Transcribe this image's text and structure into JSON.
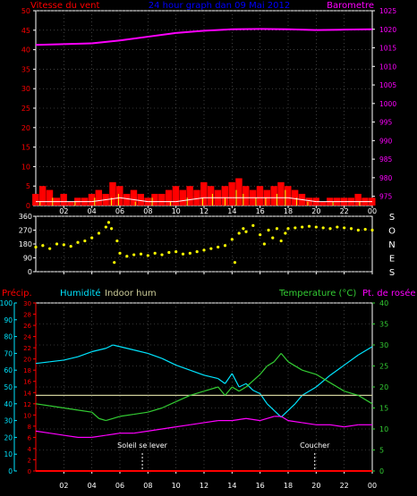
{
  "colors": {
    "background": "#000000",
    "frame": "#ffffff",
    "grid": "#666666",
    "wind_speed": "#ff0000",
    "wind_gust": "#ffff00",
    "wind_avg": "#ffffff",
    "barometer": "#ff00ff",
    "wind_dir": "#ffff00",
    "precip": "#ff0000",
    "humidity": "#00e5ff",
    "indoor_hum": "#cccc99",
    "temperature": "#33cc33",
    "dew_point": "#ff00ff",
    "title": "#0000ff",
    "axis_text": "#ffffff"
  },
  "chart_data": [
    {
      "type": "line",
      "id": "wind-baro",
      "title": "24 hour graph dan 09 Mai 2012",
      "left_label": "Vitesse du vent",
      "right_label": "Barometre",
      "x_ticks": [
        "02",
        "04",
        "06",
        "08",
        "10",
        "12",
        "14",
        "16",
        "18",
        "20",
        "22",
        "00"
      ],
      "left_ylim": [
        0,
        50
      ],
      "left_ticks": [
        0,
        5,
        10,
        15,
        20,
        25,
        30,
        35,
        40,
        45,
        50
      ],
      "right_ylim": [
        972.5,
        1025
      ],
      "right_ticks": [
        975,
        980,
        985,
        990,
        995,
        1000,
        1005,
        1010,
        1015,
        1020,
        1025
      ],
      "grid": true,
      "series": [
        {
          "key": "wind_speed",
          "axis": "left",
          "style": "bars",
          "x": [
            0,
            0.5,
            1,
            1.5,
            2,
            2.5,
            3,
            3.5,
            4,
            4.5,
            5,
            5.5,
            6,
            6.5,
            7,
            7.5,
            8,
            8.5,
            9,
            9.5,
            10,
            10.5,
            11,
            11.5,
            12,
            12.5,
            13,
            13.5,
            14,
            14.5,
            15,
            15.5,
            16,
            16.5,
            17,
            17.5,
            18,
            18.5,
            19,
            19.5,
            20,
            20.5,
            21,
            21.5,
            22,
            22.5,
            23,
            23.5,
            24
          ],
          "values": [
            3,
            5,
            4,
            2,
            3,
            1,
            2,
            2,
            3,
            4,
            3,
            6,
            5,
            3,
            4,
            3,
            2,
            3,
            3,
            4,
            5,
            4,
            5,
            4,
            6,
            5,
            4,
            5,
            6,
            7,
            5,
            4,
            5,
            4,
            5,
            6,
            5,
            4,
            3,
            2,
            2,
            1,
            2,
            2,
            2,
            2,
            3,
            2,
            2
          ]
        },
        {
          "key": "wind_gust",
          "axis": "left",
          "style": "spikes",
          "x": [
            0.3,
            1.2,
            2.8,
            4.2,
            5.4,
            5.9,
            7.1,
            8.3,
            9.6,
            10.8,
            11.9,
            12.6,
            13.5,
            14.3,
            14.8,
            15.7,
            16.4,
            17.2,
            17.8,
            18.6,
            19.4,
            21.2,
            23.1
          ],
          "values": [
            1,
            2,
            1,
            2,
            2,
            3,
            1,
            2,
            1,
            2,
            2,
            3,
            2,
            4,
            3,
            2,
            2,
            3,
            4,
            2,
            1,
            1,
            1
          ]
        },
        {
          "key": "wind_avg",
          "axis": "left",
          "style": "line",
          "x": [
            0,
            2,
            4,
            6,
            8,
            10,
            12,
            14,
            16,
            18,
            20,
            22,
            24
          ],
          "values": [
            1,
            1,
            1,
            2,
            1,
            1,
            2,
            2,
            2,
            2,
            1,
            1,
            1
          ]
        },
        {
          "key": "barometer",
          "axis": "right",
          "style": "line",
          "x": [
            0,
            2,
            4,
            6,
            8,
            10,
            12,
            14,
            16,
            18,
            20,
            22,
            24
          ],
          "values": [
            1015.8,
            1016.0,
            1016.2,
            1017.0,
            1018.0,
            1019.0,
            1019.6,
            1020.0,
            1020.1,
            1020.0,
            1019.8,
            1019.9,
            1020.0
          ]
        }
      ]
    },
    {
      "type": "scatter",
      "id": "wind-dir",
      "ylim": [
        0,
        360
      ],
      "left_ticks": [
        0,
        90,
        180,
        270,
        360
      ],
      "right_labels": [
        "S",
        "E",
        "N",
        "O",
        "S"
      ],
      "x_ticks": [
        "02",
        "04",
        "06",
        "08",
        "10",
        "12",
        "14",
        "16",
        "18",
        "20",
        "22",
        "00"
      ],
      "grid": true,
      "series": [
        {
          "key": "wind_dir",
          "x": [
            0,
            0.5,
            1,
            1.5,
            2,
            2.5,
            3,
            3.5,
            4,
            4.5,
            5,
            5.2,
            5.4,
            5.6,
            5.8,
            6,
            6.5,
            7,
            7.5,
            8,
            8.5,
            9,
            9.5,
            10,
            10.5,
            11,
            11.5,
            12,
            12.5,
            13,
            13.5,
            14,
            14.2,
            14.5,
            14.8,
            15,
            15.5,
            16,
            16.3,
            16.6,
            16.9,
            17.2,
            17.5,
            17.8,
            18,
            18.5,
            19,
            19.5,
            20,
            20.5,
            21,
            21.5,
            22,
            22.5,
            23,
            23.5,
            24
          ],
          "values": [
            160,
            170,
            150,
            180,
            175,
            165,
            190,
            200,
            220,
            250,
            290,
            320,
            280,
            60,
            200,
            120,
            100,
            110,
            115,
            105,
            120,
            110,
            125,
            130,
            115,
            120,
            130,
            140,
            150,
            160,
            170,
            210,
            60,
            250,
            280,
            260,
            300,
            240,
            180,
            270,
            220,
            280,
            200,
            250,
            280,
            285,
            290,
            295,
            290,
            285,
            280,
            290,
            285,
            280,
            270,
            275,
            270
          ]
        }
      ]
    },
    {
      "type": "line",
      "id": "hum-temp",
      "labels": {
        "precip": "Précip.",
        "humidity": "Humidité",
        "indoor_hum": "Indoor hum",
        "temperature": "Temperature (°C)",
        "dew_point": "Pt. de rosée"
      },
      "x_ticks": [
        "02",
        "04",
        "06",
        "08",
        "10",
        "12",
        "14",
        "16",
        "18",
        "20",
        "22",
        "00"
      ],
      "humidity_ylim": [
        0,
        100
      ],
      "humidity_ticks": [
        0,
        10,
        20,
        30,
        40,
        50,
        60,
        70,
        80,
        90,
        100
      ],
      "precip_ylim": [
        0,
        30
      ],
      "precip_ticks": [
        0,
        2,
        4,
        6,
        8,
        10,
        12,
        14,
        16,
        18,
        20,
        22,
        24,
        26,
        28,
        30
      ],
      "temp_ylim": [
        0,
        40
      ],
      "temp_ticks": [
        0,
        5,
        10,
        15,
        20,
        25,
        30,
        35,
        40
      ],
      "grid": true,
      "annotations": [
        {
          "text": "Soleil se lever",
          "x": 7.6
        },
        {
          "text": "Coucher",
          "x": 19.9
        }
      ],
      "series": [
        {
          "key": "humidity",
          "axis": "humidity",
          "x": [
            0,
            1,
            2,
            3,
            4,
            5,
            5.5,
            6,
            7,
            8,
            9,
            10,
            11,
            12,
            13,
            13.5,
            14,
            14.5,
            15,
            15.5,
            16,
            16.5,
            17,
            17.5,
            18,
            18.5,
            19,
            20,
            21,
            22,
            23,
            24
          ],
          "values": [
            64,
            65,
            66,
            68,
            71,
            73,
            75,
            74,
            72,
            70,
            67,
            63,
            60,
            57,
            55,
            52,
            58,
            50,
            52,
            48,
            46,
            40,
            36,
            32,
            36,
            40,
            45,
            50,
            57,
            63,
            69,
            74
          ]
        },
        {
          "key": "indoor_hum",
          "axis": "humidity",
          "x": [
            0,
            4,
            8,
            12,
            16,
            20,
            24
          ],
          "values": [
            45,
            45,
            45,
            45,
            45,
            45,
            45
          ]
        },
        {
          "key": "temperature",
          "axis": "temp",
          "x": [
            0,
            1,
            2,
            3,
            4,
            4.5,
            5,
            6,
            7,
            8,
            9,
            10,
            11,
            12,
            13,
            13.5,
            14,
            14.5,
            15,
            16,
            16.5,
            17,
            17.5,
            18,
            19,
            20,
            21,
            22,
            23,
            24
          ],
          "values": [
            16,
            15.5,
            15,
            14.5,
            14,
            12.5,
            12,
            13,
            13.5,
            14,
            15,
            16.5,
            18,
            19,
            20,
            18,
            20,
            19,
            20,
            23,
            25,
            26,
            28,
            26,
            24,
            23,
            21,
            19,
            18,
            16
          ]
        },
        {
          "key": "dew_point",
          "axis": "temp",
          "x": [
            0,
            1,
            2,
            3,
            4,
            5,
            6,
            7,
            8,
            9,
            10,
            11,
            12,
            13,
            14,
            15,
            16,
            17,
            17.5,
            18,
            19,
            20,
            21,
            22,
            23,
            24
          ],
          "values": [
            9.5,
            9,
            8.5,
            8,
            8,
            8.5,
            9,
            9,
            9.5,
            10,
            10.5,
            11,
            11.5,
            12,
            12,
            12.5,
            12,
            13,
            13,
            12,
            11.5,
            11,
            11,
            10.5,
            11,
            11
          ]
        },
        {
          "key": "precip",
          "axis": "precip",
          "x": [
            0,
            24
          ],
          "values": [
            0,
            0
          ]
        }
      ]
    }
  ]
}
